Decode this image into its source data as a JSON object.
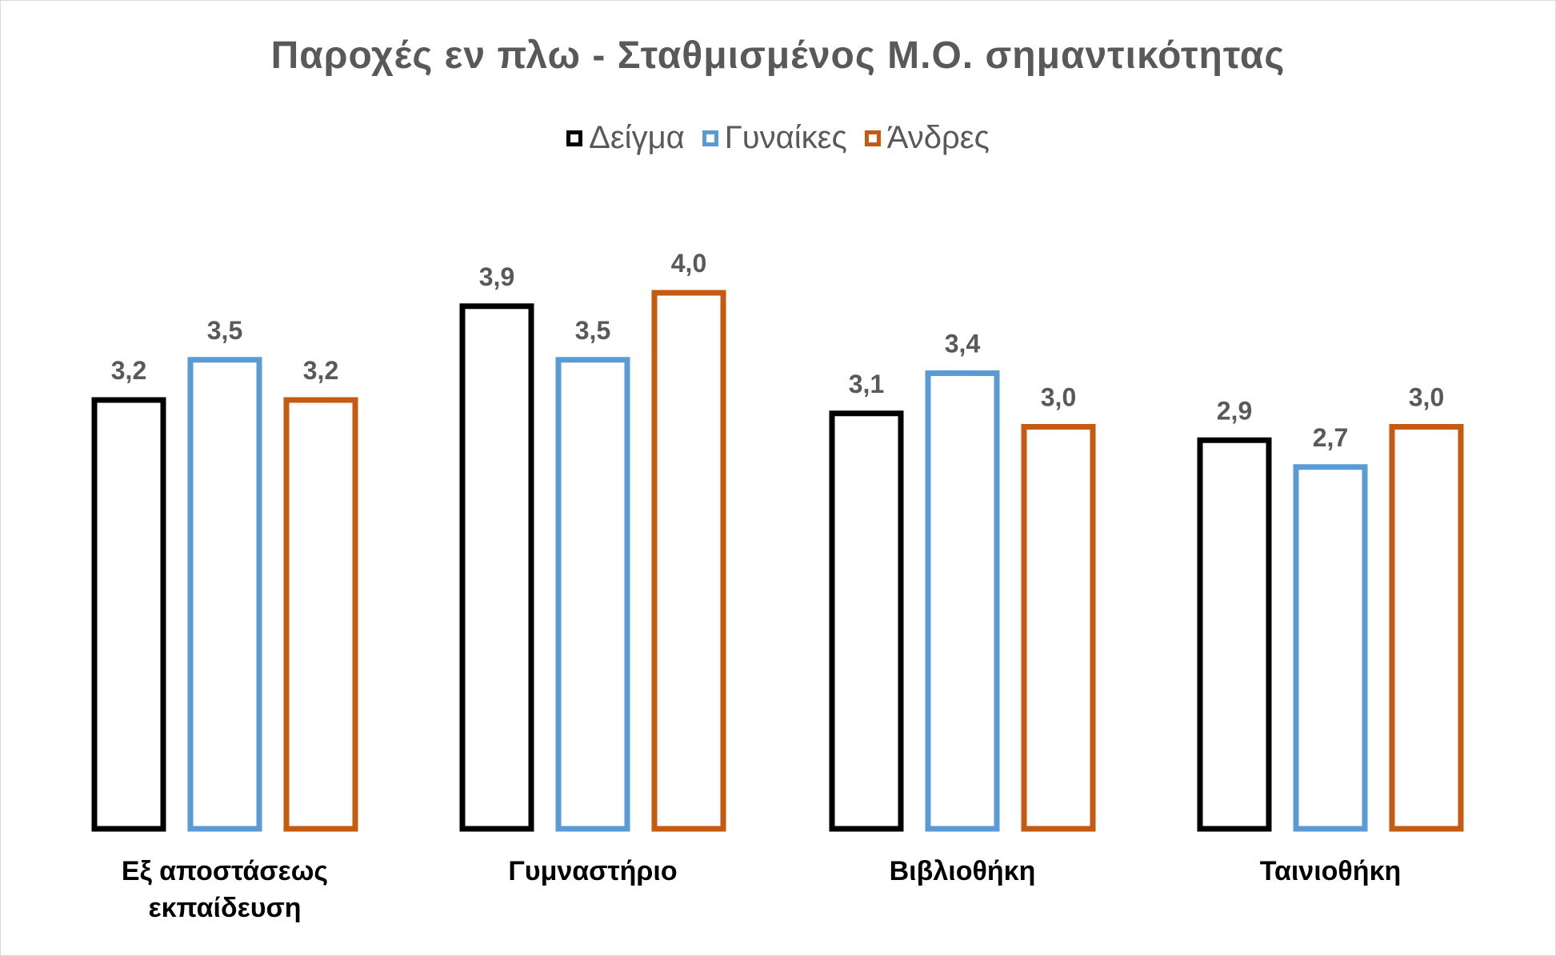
{
  "chart_data": {
    "type": "bar",
    "title": "Παροχές εν πλω - Σταθμισμένος Μ.Ο. σημαντικότητας",
    "categories": [
      "Εξ αποστάσεως εκπαίδευση",
      "Γυμναστήριο",
      "Βιβλιοθήκη",
      "Ταινιοθήκη"
    ],
    "series": [
      {
        "name": "Δείγμα",
        "values": [
          3.2,
          3.9,
          3.1,
          2.9
        ],
        "labels": [
          "3,2",
          "3,9",
          "3,1",
          "2,9"
        ],
        "color": "#000000"
      },
      {
        "name": "Γυναίκες",
        "values": [
          3.5,
          3.5,
          3.4,
          2.7
        ],
        "labels": [
          "3,5",
          "3,5",
          "3,4",
          "2,7"
        ],
        "color": "#5b9bd5"
      },
      {
        "name": "Άνδρες",
        "values": [
          3.2,
          4.0,
          3.0,
          3.0
        ],
        "labels": [
          "3,2",
          "4,0",
          "3,0",
          "3,0"
        ],
        "color": "#c55a11"
      }
    ],
    "ylim": [
      0,
      4.0
    ],
    "grid": false,
    "legend_position": "top",
    "xlabel": "",
    "ylabel": ""
  }
}
